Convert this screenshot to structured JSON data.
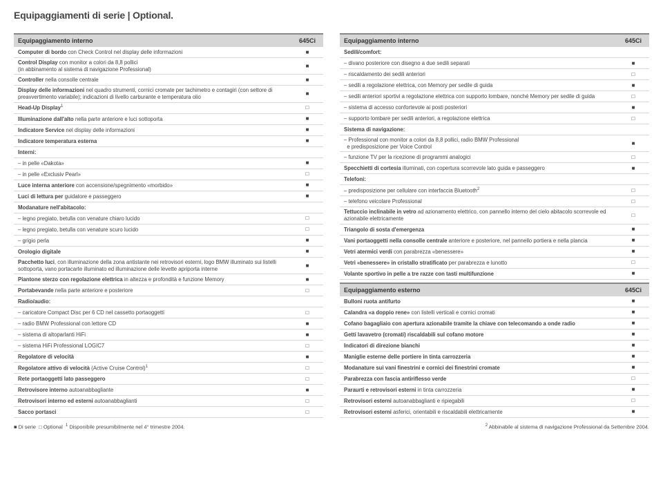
{
  "title": "Equipaggiamenti di serie | Optional.",
  "model": "645Ci",
  "marks": {
    "standard": "■",
    "optional": "□",
    "none": ""
  },
  "colors": {
    "header_bg": "#d6d6d6",
    "header_border": "#888888",
    "row_border": "#d9d9d9",
    "text": "#444444"
  },
  "left": [
    {
      "type": "head",
      "label": "Equipaggiamento interno"
    },
    {
      "label": "<b>Computer di bordo</b> con Check Control nel display delle informazioni",
      "v": "standard"
    },
    {
      "label": "<b>Control Display</b> con monitor a colori da 8,8 pollici<br>(in abbinamento al sistema di navigazione Professional)",
      "v": "standard",
      "tall": true
    },
    {
      "label": "<b>Controller</b> nella consolle centrale",
      "v": "standard"
    },
    {
      "label": "<b>Display delle informazioni</b> nel quadro strumenti, cornici cromate per tachimetro e contagiri (con settore di preavvertimento variabile); indicazioni di livello carburante e temperatura olio",
      "v": "standard",
      "tall": true
    },
    {
      "label": "<b>Head-Up Display</b><sup>1</sup>",
      "v": "optional"
    },
    {
      "label": "<b>Illuminazione dall'alto</b> nella parte anteriore e luci sottoporta",
      "v": "standard"
    },
    {
      "label": "<b>Indicatore Service</b> nel display delle informazioni",
      "v": "standard"
    },
    {
      "label": "<b>Indicatore temperatura esterna</b>",
      "v": "standard"
    },
    {
      "label": "<b>Interni:</b>",
      "v": "none",
      "subhead": true
    },
    {
      "label": "– in pelle «Dakota»",
      "v": "standard"
    },
    {
      "label": "– in pelle «Exclusiv Pearl»",
      "v": "optional"
    },
    {
      "label": "<b>Luce interna anteriore</b> con accensione/spegnimento «morbido»",
      "v": "standard"
    },
    {
      "label": "<b>Luci di lettura per</b> guidatore e passeggero",
      "v": "standard"
    },
    {
      "label": "<b>Modanature nell'abitacolo:</b>",
      "v": "none",
      "subhead": true
    },
    {
      "label": "– legno pregiato, betulla con venature chiaro lucido",
      "v": "optional"
    },
    {
      "label": "– legno pregiato, betulla con venature scuro lucido",
      "v": "optional"
    },
    {
      "label": "– grigio perla",
      "v": "standard"
    },
    {
      "label": "<b>Orologio digitale</b>",
      "v": "standard"
    },
    {
      "label": "<b>Pacchetto luci</b>, con illuminazione della zona antistante nei retrovisori esterni, logo BMW illuminato sui listelli sottoporta, vano portacarte illuminato ed illuminazione delle levette apriporta interne",
      "v": "standard",
      "tall": true
    },
    {
      "label": "<b>Piantone sterzo con regolazione elettrica</b> in altezza e profondità e funzione Memory",
      "v": "standard"
    },
    {
      "label": "<b>Portabevande</b> nella parte anteriore e posteriore",
      "v": "optional"
    },
    {
      "label": "<b>Radio/audio:</b>",
      "v": "none",
      "subhead": true
    },
    {
      "label": "– caricatore Compact Disc per 6 CD nel cassetto portaoggetti",
      "v": "optional"
    },
    {
      "label": "– radio BMW Professional con lettore CD",
      "v": "standard"
    },
    {
      "label": "– sistema di altoparlanti HiFi",
      "v": "standard"
    },
    {
      "label": "– sistema HiFi Professional LOGIC7",
      "v": "optional"
    },
    {
      "label": "<b>Regolatore di velocità</b>",
      "v": "standard"
    },
    {
      "label": "<b>Regolatore attivo di velocità</b> (Active Cruise Control)<sup>1</sup>",
      "v": "optional"
    },
    {
      "label": "<b>Rete portaoggetti lato passeggero</b>",
      "v": "optional"
    },
    {
      "label": "<b>Retrovisore interno</b> autoanabbagliante",
      "v": "standard"
    },
    {
      "label": "<b>Retrovisori interno ed esterni</b> autoanabbaglianti",
      "v": "optional"
    },
    {
      "label": "<b>Sacco portasci</b>",
      "v": "optional"
    }
  ],
  "right": [
    {
      "type": "head",
      "label": "Equipaggiamento interno"
    },
    {
      "label": "<b>Sedili/comfort:</b>",
      "v": "none",
      "subhead": true
    },
    {
      "label": "– divano posteriore con disegno a due sedili separati",
      "v": "standard"
    },
    {
      "label": "– riscaldamento dei sedili anteriori",
      "v": "optional"
    },
    {
      "label": "– sedili a regolazione elettrica, con Memory per sedile di guida",
      "v": "standard"
    },
    {
      "label": "– sedili anteriori sportivi a regolazione elettrica con supporto lombare, nonché Memory per sedile di guida",
      "v": "optional"
    },
    {
      "label": "– sistema di accesso confortevole ai posti posteriori",
      "v": "standard"
    },
    {
      "label": "– supporto lombare per sedili anteriori, a regolazione elettrica",
      "v": "optional"
    },
    {
      "label": "<b>Sistema di navigazione:</b>",
      "v": "none",
      "subhead": true
    },
    {
      "label": "– Professional con monitor a colori da 8,8 pollici, radio BMW Professional<br>&nbsp;&nbsp;e predisposizione per Voice Control",
      "v": "standard",
      "tall": true
    },
    {
      "label": "– funzione TV per la ricezione di programmi analogici",
      "v": "optional"
    },
    {
      "label": "<b>Specchietti di cortesia</b> illuminati, con copertura scorrevole lato guida e passeggero",
      "v": "standard"
    },
    {
      "label": "<b>Telefoni:</b>",
      "v": "none",
      "subhead": true
    },
    {
      "label": "– predisposizione per cellulare con interfaccia Bluetooth<sup>2</sup>",
      "v": "optional"
    },
    {
      "label": "– telefono veicolare Professional",
      "v": "optional"
    },
    {
      "label": "<b>Tettuccio inclinabile in vetro</b> ad azionamento elettrico, con pannello interno del cielo abitacolo scorrevole ed azionabile elettricamente",
      "v": "optional",
      "tall": true
    },
    {
      "label": "<b>Triangolo di sosta d'emergenza</b>",
      "v": "standard"
    },
    {
      "label": "<b>Vani portaoggetti nella consolle centrale</b> anteriore e posteriore, nel pannello portiera e nella plancia",
      "v": "standard"
    },
    {
      "label": "<b>Vetri atermici verdi</b> con parabrezza «benessere»",
      "v": "standard"
    },
    {
      "label": "<b>Vetri «benessere» in cristallo stratificato</b> per parabrezza e lunotto",
      "v": "optional"
    },
    {
      "label": "<b>Volante sportivo in pelle a tre razze con tasti multifunzione</b>",
      "v": "standard"
    },
    {
      "type": "head",
      "label": "Equipaggiamento esterno"
    },
    {
      "label": "<b>Bulloni ruota antifurto</b>",
      "v": "standard"
    },
    {
      "label": "<b>Calandra «a doppio rene»</b> con listelli verticali e cornici cromati",
      "v": "standard"
    },
    {
      "label": "<b>Cofano bagagliaio con apertura azionabile tramite la chiave con telecomando a onde radio</b>",
      "v": "standard"
    },
    {
      "label": "<b>Getti lavavetro (cromati) riscaldabili sul cofano motore</b>",
      "v": "standard"
    },
    {
      "label": "<b>Indicatori di direzione bianchi</b>",
      "v": "standard"
    },
    {
      "label": "<b>Maniglie esterne delle portiere in tinta carrozzeria</b>",
      "v": "standard"
    },
    {
      "label": "<b>Modanature sui vani finestrini e cornici dei finestrini cromate</b>",
      "v": "standard"
    },
    {
      "label": "<b>Parabrezza con fascia antiriflesso verde</b>",
      "v": "optional"
    },
    {
      "label": "<b>Paraurti e retrovisori esterni</b> in tinta carrozzeria",
      "v": "standard"
    },
    {
      "label": "<b>Retrovisori esterni</b> autoanabbaglianti e ripiegabili",
      "v": "optional"
    },
    {
      "label": "<b>Retrovisori esterni</b> asferici, orientabili e riscaldabili elettricamente",
      "v": "standard"
    }
  ],
  "footer": {
    "left": "■ Di serie&nbsp;&nbsp;□ Optional&nbsp;&nbsp;<sup>1</sup> Disponibile presumibilmente nel 4° trimestre 2004.",
    "right": "<sup>2</sup> Abbinabile al sistema di navigazione Professional da Settembre 2004."
  }
}
